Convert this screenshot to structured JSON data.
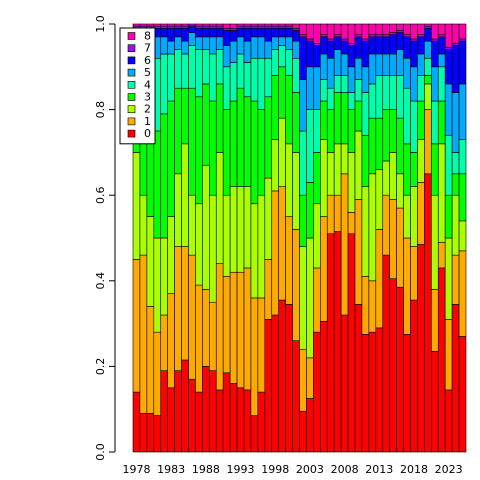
{
  "chart_data": {
    "type": "stacked_bar",
    "categories": [
      "1978",
      null,
      null,
      null,
      null,
      "1983",
      null,
      null,
      null,
      null,
      "1988",
      null,
      null,
      null,
      null,
      "1993",
      null,
      null,
      null,
      null,
      "1998",
      null,
      null,
      null,
      null,
      "2003",
      null,
      null,
      null,
      null,
      "2008",
      null,
      null,
      null,
      null,
      "2013",
      null,
      null,
      null,
      null,
      "2018",
      null,
      null,
      null,
      null,
      "2023",
      null,
      null
    ],
    "ylim": [
      0,
      1
    ],
    "yticks": [
      {
        "value": 0,
        "label": "0.0"
      },
      0.2,
      0.4,
      0.6,
      0.8,
      {
        "value": 1,
        "label": "1.0"
      }
    ],
    "legend_position": "top-left",
    "series": [
      {
        "name": "0",
        "color": "#FF0000",
        "values": [
          0.14,
          0.09,
          0.09,
          0.085,
          0.19,
          0.15,
          0.19,
          0.215,
          0.17,
          0.14,
          0.2,
          0.19,
          0.145,
          0.185,
          0.16,
          0.15,
          0.145,
          0.085,
          0.14,
          0.31,
          0.32,
          0.355,
          0.345,
          0.26,
          0.095,
          0.125,
          0.28,
          0.305,
          0.51,
          0.515,
          0.32,
          0.51,
          0.345,
          0.275,
          0.28,
          0.29,
          0.46,
          0.405,
          0.385,
          0.275,
          0.355,
          0.485,
          0.65,
          0.235,
          0.43,
          0.145,
          0.345,
          0.27
        ]
      },
      {
        "name": "1",
        "color": "#FFAA00",
        "values": [
          0.31,
          0.37,
          0.25,
          0.195,
          0.13,
          0.22,
          0.29,
          0.265,
          0.29,
          0.25,
          0.18,
          0.16,
          0.295,
          0.225,
          0.26,
          0.27,
          0.285,
          0.275,
          0.22,
          0.14,
          0.29,
          0.265,
          0.205,
          0.26,
          0.145,
          0.095,
          0.15,
          0.245,
          0.09,
          0.085,
          0.33,
          0.05,
          0.245,
          0.135,
          0.12,
          0.23,
          0.14,
          0.185,
          0.185,
          0.225,
          0.125,
          0.145,
          0.15,
          0.145,
          0.06,
          0.165,
          0.115,
          0.2
        ]
      },
      {
        "name": "2",
        "color": "#AAFF00",
        "values": [
          0.25,
          0.14,
          0.21,
          0.22,
          0.18,
          0.18,
          0.17,
          0.24,
          0.14,
          0.19,
          0.29,
          0.25,
          0.26,
          0.19,
          0.2,
          0.2,
          0.19,
          0.22,
          0.24,
          0.19,
          0.12,
          0.16,
          0.17,
          0.18,
          0.24,
          0.28,
          0.15,
          0.18,
          0.1,
          0.12,
          0.07,
          0.14,
          0.16,
          0.21,
          0.25,
          0.14,
          0.08,
          0.11,
          0.08,
          0.1,
          0.14,
          0.1,
          0.06,
          0.22,
          0.23,
          0.19,
          0.14,
          0.07
        ]
      },
      {
        "name": "3",
        "color": "#00FF00",
        "values": [
          0.12,
          0.22,
          0.23,
          0.25,
          0.29,
          0.27,
          0.2,
          0.13,
          0.25,
          0.25,
          0.19,
          0.22,
          0.16,
          0.2,
          0.2,
          0.23,
          0.21,
          0.24,
          0.2,
          0.19,
          0.15,
          0.12,
          0.16,
          0.14,
          0.12,
          0.13,
          0.12,
          0.09,
          0.1,
          0.12,
          0.12,
          0.1,
          0.07,
          0.12,
          0.13,
          0.12,
          0.12,
          0.1,
          0.13,
          0.12,
          0.08,
          0.09,
          0.02,
          0.12,
          0.1,
          0.1,
          0.05,
          0.11
        ]
      },
      {
        "name": "4",
        "color": "#00FFAA",
        "values": [
          0.1,
          0.08,
          0.13,
          0.17,
          0.14,
          0.11,
          0.09,
          0.08,
          0.1,
          0.11,
          0.08,
          0.11,
          0.08,
          0.1,
          0.09,
          0.08,
          0.08,
          0.1,
          0.12,
          0.09,
          0.06,
          0.05,
          0.06,
          0.08,
          0.15,
          0.17,
          0.1,
          0.05,
          0.05,
          0.04,
          0.04,
          0.04,
          0.05,
          0.1,
          0.08,
          0.1,
          0.08,
          0.08,
          0.1,
          0.13,
          0.12,
          0.06,
          0.04,
          0.1,
          0.08,
          0.14,
          0.05,
          0.08
        ]
      },
      {
        "name": "5",
        "color": "#00AAFF",
        "values": [
          0.05,
          0.05,
          0.05,
          0.05,
          0.04,
          0.03,
          0.03,
          0.03,
          0.03,
          0.03,
          0.03,
          0.04,
          0.03,
          0.05,
          0.05,
          0.04,
          0.05,
          0.05,
          0.05,
          0.04,
          0.03,
          0.02,
          0.03,
          0.04,
          0.12,
          0.1,
          0.1,
          0.06,
          0.07,
          0.06,
          0.05,
          0.06,
          0.05,
          0.06,
          0.07,
          0.05,
          0.05,
          0.05,
          0.06,
          0.07,
          0.08,
          0.05,
          0.04,
          0.08,
          0.03,
          0.12,
          0.14,
          0.13
        ]
      },
      {
        "name": "6",
        "color": "#0000FF",
        "values": [
          0.02,
          0.04,
          0.03,
          0.02,
          0.02,
          0.03,
          0.02,
          0.03,
          0.015,
          0.02,
          0.02,
          0.02,
          0.02,
          0.035,
          0.025,
          0.02,
          0.03,
          0.02,
          0.02,
          0.03,
          0.02,
          0.02,
          0.02,
          0.025,
          0.1,
          0.06,
          0.05,
          0.04,
          0.04,
          0.03,
          0.03,
          0.05,
          0.05,
          0.06,
          0.04,
          0.04,
          0.04,
          0.045,
          0.04,
          0.05,
          0.06,
          0.04,
          0.03,
          0.06,
          0.04,
          0.08,
          0.11,
          0.1
        ]
      },
      {
        "name": "7",
        "color": "#AA00FF",
        "values": [
          0.005,
          0.005,
          0.005,
          0.005,
          0.005,
          0.005,
          0.005,
          0.005,
          0.005,
          0.005,
          0.005,
          0.005,
          0.005,
          0.005,
          0.005,
          0.005,
          0.005,
          0.005,
          0.005,
          0.005,
          0.005,
          0.005,
          0.005,
          0.005,
          0.005,
          0.005,
          0.005,
          0.005,
          0.005,
          0.005,
          0.005,
          0.005,
          0.005,
          0.005,
          0.005,
          0.005,
          0.005,
          0.005,
          0.005,
          0.005,
          0.005,
          0.005,
          0.005,
          0.005,
          0.005,
          0.005,
          0.005,
          0.005
        ]
      },
      {
        "name": "8",
        "color": "#FF00AA",
        "values": [
          0.005,
          0.005,
          0.005,
          0.005,
          0.005,
          0.005,
          0.005,
          0.005,
          0,
          0.005,
          0.005,
          0.005,
          0.005,
          0.01,
          0.01,
          0.005,
          0.005,
          0.005,
          0.005,
          0.005,
          0.005,
          0.005,
          0.005,
          0.01,
          0.025,
          0.035,
          0.045,
          0.025,
          0.035,
          0.025,
          0.035,
          0.045,
          0.025,
          0.035,
          0.025,
          0.025,
          0.025,
          0.02,
          0.015,
          0.025,
          0.035,
          0.025,
          0.005,
          0.035,
          0.025,
          0.055,
          0.045,
          0.035
        ]
      }
    ]
  }
}
